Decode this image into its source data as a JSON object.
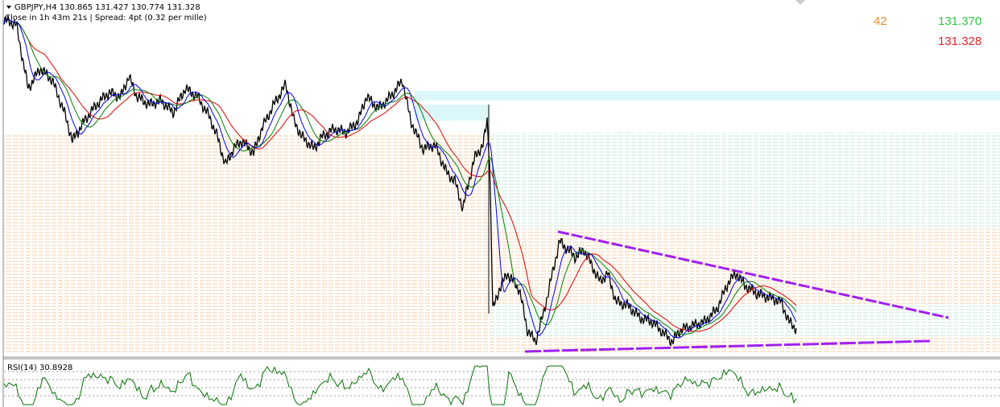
{
  "header": {
    "title": "GBPJPY,H4  130.865 131.427 130.774 131.328",
    "countdown": "Close in 1h 43m 21s | Spread: 4pt (0.32 per mille)"
  },
  "panel": {
    "count": "42",
    "ask": "131.370",
    "bid": "131.328"
  },
  "rsi": {
    "label": "RSI(14) 30.8928"
  }
}
